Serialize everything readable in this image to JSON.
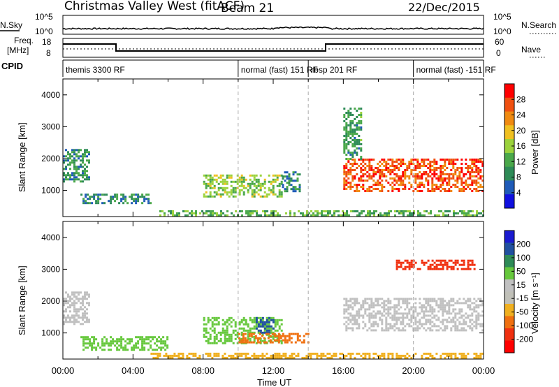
{
  "header": {
    "station": "Christmas Valley West (fitACF)",
    "beam": "Beam 21",
    "date": "22/Dec/2015"
  },
  "colors": {
    "power": [
      "#1010e0",
      "#1f5bb8",
      "#2e8b57",
      "#4aa84a",
      "#9bd23c",
      "#f0c020",
      "#f08a10",
      "#f05010",
      "#ff0000"
    ],
    "velocity": [
      "#1a1ad0",
      "#2050a0",
      "#2e8b57",
      "#66c83c",
      "#c0c0c0",
      "#c0c0b8",
      "#f0b020",
      "#f07010",
      "#f03010",
      "#ff0000"
    ]
  },
  "labels": {
    "nsky": "N.Sky",
    "nsearch": "N.Search",
    "freq": "Freq.",
    "mhz": "[MHz]",
    "nave": "Nave",
    "cpid": "CPID",
    "noise_left_top": "10^5",
    "noise_left_bot": "10^0",
    "noise_right_top": "10^5",
    "noise_right_bot": "10^0",
    "freq_top": "18",
    "freq_bot": "8",
    "nave_top": "60",
    "nave_bot": "0",
    "slant_range": "Slant Range [km]",
    "time_ut": "Time UT",
    "power_label": "Power [dB]",
    "velocity_label": "Velocity [m s⁻¹]"
  },
  "cpid_segments": [
    {
      "label": "themis 3300 RF",
      "start_h": 0
    },
    {
      "label": "normal (fast) 151 RF",
      "start_h": 10
    },
    {
      "label": "rbsp 201 RF",
      "start_h": 14
    },
    {
      "label": "normal (fast) -151 RF",
      "start_h": 20
    }
  ],
  "chart_data": [
    {
      "type": "heatmap",
      "title": "",
      "xlabel": "Time UT",
      "ylabel": "Slant Range [km]",
      "x_ticks": [
        "00:00",
        "04:00",
        "08:00",
        "12:00",
        "16:00",
        "20:00",
        "00:00"
      ],
      "xlim_hours": [
        0,
        24
      ],
      "y_ticks": [
        1000,
        2000,
        3000,
        4000
      ],
      "ylim": [
        180,
        4500
      ],
      "colorbar": {
        "label": "Power [dB]",
        "ticks": [
          "4",
          "8",
          "12",
          "16",
          "20",
          "24",
          "28"
        ],
        "range": [
          0,
          30
        ]
      },
      "regions": [
        {
          "t0": 0.0,
          "t1": 1.5,
          "r0": 1300,
          "r1": 2300,
          "level": 9
        },
        {
          "t0": 1.0,
          "t1": 5.0,
          "r0": 600,
          "r1": 900,
          "level": 8
        },
        {
          "t0": 8.0,
          "t1": 12.5,
          "r0": 800,
          "r1": 1500,
          "level": 14
        },
        {
          "t0": 12.5,
          "t1": 13.5,
          "r0": 1000,
          "r1": 1600,
          "level": 8
        },
        {
          "t0": 16.0,
          "t1": 24.0,
          "r0": 1000,
          "r1": 2000,
          "level": 25
        },
        {
          "t0": 16.0,
          "t1": 17.0,
          "r0": 2000,
          "r1": 3600,
          "level": 10
        },
        {
          "t0": 5.5,
          "t1": 24.0,
          "r0": 200,
          "r1": 380,
          "level": 12
        }
      ]
    },
    {
      "type": "heatmap",
      "title": "",
      "xlabel": "Time UT",
      "ylabel": "Slant Range [km]",
      "x_ticks": [
        "00:00",
        "04:00",
        "08:00",
        "12:00",
        "16:00",
        "20:00",
        "00:00"
      ],
      "xlim_hours": [
        0,
        24
      ],
      "y_ticks": [
        1000,
        2000,
        3000,
        4000
      ],
      "ylim": [
        180,
        4500
      ],
      "colorbar": {
        "label": "Velocity [m s⁻¹]",
        "ticks": [
          "200",
          "100",
          "50",
          "15",
          "-15",
          "-50",
          "-100",
          "-200"
        ],
        "range": [
          -250,
          250
        ]
      },
      "regions": [
        {
          "t0": 0.0,
          "t1": 1.5,
          "r0": 1300,
          "r1": 2300,
          "level": 0
        },
        {
          "t0": 1.0,
          "t1": 6.0,
          "r0": 500,
          "r1": 900,
          "level": 30
        },
        {
          "t0": 8.0,
          "t1": 12.5,
          "r0": 700,
          "r1": 1500,
          "level": 20
        },
        {
          "t0": 11.0,
          "t1": 12.0,
          "r0": 1000,
          "r1": 1500,
          "level": 150
        },
        {
          "t0": 10.0,
          "t1": 14.0,
          "r0": 700,
          "r1": 1000,
          "level": -60
        },
        {
          "t0": 16.0,
          "t1": 24.0,
          "r0": 1100,
          "r1": 2100,
          "level": 0
        },
        {
          "t0": 19.0,
          "t1": 23.5,
          "r0": 3000,
          "r1": 3300,
          "level": -150
        },
        {
          "t0": 5.0,
          "t1": 24.0,
          "r0": 200,
          "r1": 380,
          "level": -40
        }
      ]
    }
  ]
}
